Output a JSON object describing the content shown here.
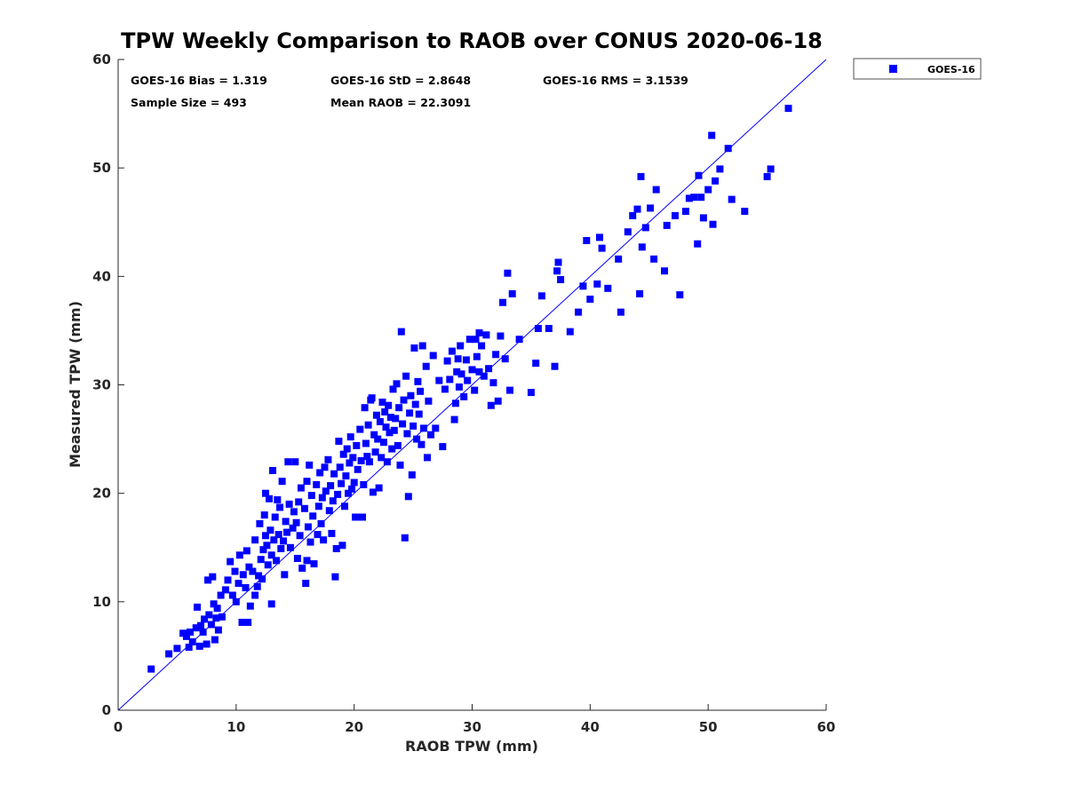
{
  "chart_data": {
    "type": "scatter",
    "title": "TPW Weekly Comparison to RAOB over CONUS 2020-06-18",
    "xlabel": "RAOB TPW (mm)",
    "ylabel": "Measured TPW (mm)",
    "xlim": [
      0,
      60
    ],
    "ylim": [
      0,
      60
    ],
    "xticks": [
      "0",
      "10",
      "20",
      "30",
      "40",
      "50",
      "60"
    ],
    "yticks": [
      "0",
      "10",
      "20",
      "30",
      "40",
      "50",
      "60"
    ],
    "grid": false,
    "legend_position": "outside-top-right",
    "stats": {
      "bias": "GOES-16 Bias = 1.319",
      "std": "GOES-16 StD = 2.8648",
      "rms": "GOES-16 RMS = 3.1539",
      "sample_size": "Sample Size = 493",
      "mean_raob": "Mean RAOB = 22.3091"
    },
    "reference_line": {
      "name": "1:1 line",
      "from": [
        0,
        0
      ],
      "to": [
        60,
        60
      ],
      "color": "#0000ff"
    },
    "series": [
      {
        "name": "GOES-16",
        "color": "#0000ff",
        "points": [
          [
            2.8,
            3.8
          ],
          [
            4.3,
            5.2
          ],
          [
            5.0,
            5.7
          ],
          [
            5.5,
            7.1
          ],
          [
            5.8,
            6.8
          ],
          [
            6.0,
            5.8
          ],
          [
            6.1,
            7.2
          ],
          [
            6.3,
            6.3
          ],
          [
            6.6,
            7.6
          ],
          [
            6.7,
            9.5
          ],
          [
            6.9,
            5.9
          ],
          [
            7.0,
            7.8
          ],
          [
            7.2,
            7.2
          ],
          [
            7.3,
            8.4
          ],
          [
            7.5,
            6.1
          ],
          [
            7.6,
            12.0
          ],
          [
            7.7,
            8.8
          ],
          [
            7.9,
            7.9
          ],
          [
            8.0,
            12.3
          ],
          [
            8.1,
            9.8
          ],
          [
            8.2,
            6.5
          ],
          [
            8.3,
            8.5
          ],
          [
            8.4,
            9.4
          ],
          [
            8.5,
            7.4
          ],
          [
            8.7,
            10.6
          ],
          [
            8.8,
            8.6
          ],
          [
            9.1,
            11.1
          ],
          [
            9.3,
            12.0
          ],
          [
            9.5,
            13.7
          ],
          [
            9.7,
            10.6
          ],
          [
            9.9,
            12.8
          ],
          [
            10.0,
            10.0
          ],
          [
            10.2,
            11.7
          ],
          [
            10.5,
            8.1
          ],
          [
            10.6,
            12.5
          ],
          [
            10.8,
            11.3
          ],
          [
            10.9,
            14.7
          ],
          [
            11.0,
            8.1
          ],
          [
            11.1,
            13.2
          ],
          [
            11.2,
            9.6
          ],
          [
            11.4,
            12.8
          ],
          [
            11.6,
            15.7
          ],
          [
            11.8,
            11.4
          ],
          [
            11.9,
            12.4
          ],
          [
            12.0,
            17.2
          ],
          [
            12.1,
            13.9
          ],
          [
            12.2,
            12.1
          ],
          [
            12.3,
            14.8
          ],
          [
            12.4,
            18.0
          ],
          [
            12.5,
            16.1
          ],
          [
            12.5,
            20.0
          ],
          [
            12.6,
            15.2
          ],
          [
            12.7,
            13.4
          ],
          [
            12.8,
            19.5
          ],
          [
            12.9,
            16.6
          ],
          [
            13.0,
            14.3
          ],
          [
            13.0,
            9.8
          ],
          [
            13.1,
            22.1
          ],
          [
            13.2,
            15.7
          ],
          [
            13.3,
            17.8
          ],
          [
            13.4,
            13.8
          ],
          [
            13.5,
            19.4
          ],
          [
            13.6,
            16.2
          ],
          [
            13.7,
            18.7
          ],
          [
            13.8,
            14.9
          ],
          [
            13.9,
            21.1
          ],
          [
            14.0,
            15.6
          ],
          [
            14.1,
            12.5
          ],
          [
            14.2,
            17.4
          ],
          [
            14.3,
            16.4
          ],
          [
            14.5,
            19.0
          ],
          [
            14.6,
            15.0
          ],
          [
            14.8,
            16.8
          ],
          [
            14.9,
            18.3
          ],
          [
            15.0,
            22.9
          ],
          [
            15.1,
            17.3
          ],
          [
            15.2,
            14.0
          ],
          [
            15.3,
            19.2
          ],
          [
            15.4,
            16.1
          ],
          [
            15.5,
            20.5
          ],
          [
            15.6,
            13.1
          ],
          [
            15.8,
            18.6
          ],
          [
            15.9,
            11.7
          ],
          [
            16.0,
            21.1
          ],
          [
            16.1,
            16.9
          ],
          [
            16.2,
            22.6
          ],
          [
            16.3,
            15.5
          ],
          [
            16.4,
            19.8
          ],
          [
            16.5,
            17.9
          ],
          [
            16.6,
            13.5
          ],
          [
            16.8,
            20.8
          ],
          [
            16.9,
            16.2
          ],
          [
            17.0,
            18.8
          ],
          [
            17.1,
            21.9
          ],
          [
            17.2,
            17.2
          ],
          [
            17.3,
            19.6
          ],
          [
            17.4,
            15.7
          ],
          [
            17.5,
            22.4
          ],
          [
            17.6,
            20.2
          ],
          [
            17.8,
            23.1
          ],
          [
            17.9,
            18.4
          ],
          [
            18.0,
            20.7
          ],
          [
            18.1,
            16.3
          ],
          [
            18.2,
            19.3
          ],
          [
            18.3,
            21.8
          ],
          [
            18.4,
            12.3
          ],
          [
            18.5,
            14.9
          ],
          [
            18.6,
            19.9
          ],
          [
            18.7,
            24.8
          ],
          [
            18.8,
            22.4
          ],
          [
            18.9,
            20.9
          ],
          [
            19.0,
            15.2
          ],
          [
            19.1,
            23.6
          ],
          [
            19.2,
            18.8
          ],
          [
            19.3,
            21.6
          ],
          [
            19.4,
            24.1
          ],
          [
            19.5,
            20.0
          ],
          [
            19.6,
            22.8
          ],
          [
            19.7,
            25.2
          ],
          [
            19.8,
            20.4
          ],
          [
            19.9,
            23.3
          ],
          [
            20.0,
            21.0
          ],
          [
            20.1,
            17.8
          ],
          [
            20.2,
            24.4
          ],
          [
            20.3,
            22.2
          ],
          [
            20.5,
            25.9
          ],
          [
            20.6,
            23.0
          ],
          [
            20.8,
            20.8
          ],
          [
            20.9,
            27.9
          ],
          [
            21.0,
            24.6
          ],
          [
            21.1,
            23.4
          ],
          [
            21.2,
            26.3
          ],
          [
            21.3,
            22.9
          ],
          [
            21.5,
            28.8
          ],
          [
            21.6,
            20.1
          ],
          [
            21.7,
            25.4
          ],
          [
            21.8,
            23.8
          ],
          [
            21.9,
            27.2
          ],
          [
            22.0,
            25.0
          ],
          [
            22.1,
            20.5
          ],
          [
            22.2,
            26.6
          ],
          [
            22.3,
            23.3
          ],
          [
            22.4,
            28.4
          ],
          [
            22.5,
            24.7
          ],
          [
            22.6,
            27.5
          ],
          [
            22.7,
            26.1
          ],
          [
            22.8,
            22.9
          ],
          [
            22.9,
            28.1
          ],
          [
            23.0,
            25.6
          ],
          [
            23.1,
            27.0
          ],
          [
            23.2,
            24.1
          ],
          [
            23.3,
            29.6
          ],
          [
            23.4,
            25.8
          ],
          [
            23.5,
            26.9
          ],
          [
            23.6,
            30.1
          ],
          [
            23.7,
            24.4
          ],
          [
            23.8,
            27.9
          ],
          [
            23.9,
            22.6
          ],
          [
            24.0,
            34.9
          ],
          [
            24.1,
            26.4
          ],
          [
            24.2,
            28.6
          ],
          [
            24.3,
            15.9
          ],
          [
            24.4,
            30.8
          ],
          [
            24.5,
            25.5
          ],
          [
            24.6,
            19.7
          ],
          [
            24.7,
            27.4
          ],
          [
            24.8,
            29.0
          ],
          [
            24.9,
            21.7
          ],
          [
            25.0,
            26.2
          ],
          [
            25.1,
            33.4
          ],
          [
            25.2,
            28.2
          ],
          [
            25.3,
            25.0
          ],
          [
            25.4,
            30.3
          ],
          [
            25.5,
            27.3
          ],
          [
            25.6,
            29.4
          ],
          [
            25.7,
            24.5
          ],
          [
            25.8,
            33.6
          ],
          [
            25.9,
            26.0
          ],
          [
            26.1,
            31.7
          ],
          [
            26.2,
            23.3
          ],
          [
            26.3,
            28.5
          ],
          [
            26.5,
            25.4
          ],
          [
            26.7,
            32.7
          ],
          [
            26.9,
            26.0
          ],
          [
            27.2,
            30.4
          ],
          [
            27.5,
            24.3
          ],
          [
            27.7,
            29.6
          ],
          [
            27.9,
            32.2
          ],
          [
            28.1,
            30.5
          ],
          [
            28.3,
            33.1
          ],
          [
            28.5,
            26.8
          ],
          [
            28.6,
            28.3
          ],
          [
            28.7,
            31.2
          ],
          [
            28.8,
            32.4
          ],
          [
            28.9,
            29.8
          ],
          [
            29.0,
            33.6
          ],
          [
            29.1,
            31.0
          ],
          [
            29.3,
            28.9
          ],
          [
            29.5,
            32.3
          ],
          [
            29.6,
            30.4
          ],
          [
            29.8,
            34.2
          ],
          [
            30.0,
            31.4
          ],
          [
            30.2,
            29.5
          ],
          [
            30.4,
            32.6
          ],
          [
            30.6,
            31.2
          ],
          [
            30.8,
            33.6
          ],
          [
            31.0,
            30.8
          ],
          [
            31.2,
            34.6
          ],
          [
            31.4,
            31.5
          ],
          [
            31.6,
            28.1
          ],
          [
            31.8,
            30.2
          ],
          [
            32.0,
            32.8
          ],
          [
            32.2,
            28.5
          ],
          [
            32.4,
            34.5
          ],
          [
            32.6,
            37.6
          ],
          [
            32.8,
            32.4
          ],
          [
            33.0,
            40.3
          ],
          [
            33.2,
            29.5
          ],
          [
            33.4,
            38.4
          ],
          [
            34.0,
            34.2
          ],
          [
            35.0,
            29.3
          ],
          [
            35.4,
            32.0
          ],
          [
            35.6,
            35.2
          ],
          [
            35.9,
            38.2
          ],
          [
            36.5,
            35.2
          ],
          [
            37.0,
            31.7
          ],
          [
            37.3,
            41.3
          ],
          [
            37.5,
            39.7
          ],
          [
            38.3,
            34.9
          ],
          [
            39.0,
            36.7
          ],
          [
            39.4,
            39.1
          ],
          [
            39.7,
            43.3
          ],
          [
            40.0,
            37.9
          ],
          [
            40.6,
            39.3
          ],
          [
            40.8,
            43.6
          ],
          [
            41.0,
            42.6
          ],
          [
            41.5,
            38.9
          ],
          [
            42.4,
            41.6
          ],
          [
            42.6,
            36.7
          ],
          [
            43.2,
            44.1
          ],
          [
            43.6,
            45.6
          ],
          [
            44.0,
            46.2
          ],
          [
            44.2,
            38.4
          ],
          [
            44.4,
            42.7
          ],
          [
            44.7,
            44.5
          ],
          [
            45.1,
            46.3
          ],
          [
            45.4,
            41.6
          ],
          [
            45.6,
            48.0
          ],
          [
            46.3,
            40.5
          ],
          [
            46.5,
            44.7
          ],
          [
            47.2,
            45.6
          ],
          [
            47.6,
            38.3
          ],
          [
            48.1,
            46.0
          ],
          [
            48.4,
            47.2
          ],
          [
            48.8,
            47.3
          ],
          [
            49.1,
            43.0
          ],
          [
            49.2,
            49.3
          ],
          [
            49.4,
            47.3
          ],
          [
            49.6,
            45.4
          ],
          [
            50.0,
            48.0
          ],
          [
            50.3,
            53.0
          ],
          [
            50.4,
            44.8
          ],
          [
            50.6,
            48.8
          ],
          [
            51.0,
            49.9
          ],
          [
            51.7,
            51.8
          ],
          [
            52.0,
            47.1
          ],
          [
            53.1,
            46.0
          ],
          [
            55.0,
            49.2
          ],
          [
            55.3,
            49.9
          ],
          [
            56.8,
            55.5
          ],
          [
            44.3,
            49.2
          ],
          [
            30.6,
            34.8
          ],
          [
            11.6,
            10.6
          ],
          [
            10.3,
            14.3
          ],
          [
            14.4,
            22.9
          ],
          [
            16.0,
            13.8
          ],
          [
            21.4,
            28.6
          ],
          [
            30.3,
            34.2
          ],
          [
            37.2,
            40.5
          ],
          [
            20.7,
            17.8
          ]
        ]
      }
    ]
  }
}
